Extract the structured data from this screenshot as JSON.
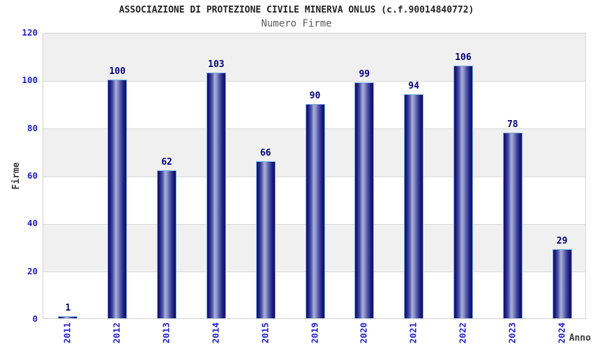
{
  "header": {
    "title": "ASSOCIAZIONE DI PROTEZIONE CIVILE MINERVA ONLUS (c.f.90014840772)",
    "subtitle": "Numero Firme"
  },
  "chart_data": {
    "type": "bar",
    "title": "ASSOCIAZIONE DI PROTEZIONE CIVILE MINERVA ONLUS (c.f.90014840772)",
    "subtitle": "Numero Firme",
    "categories": [
      "2011",
      "2012",
      "2013",
      "2014",
      "2015",
      "2019",
      "2020",
      "2021",
      "2022",
      "2023",
      "2024"
    ],
    "values": [
      1,
      100,
      62,
      103,
      66,
      90,
      99,
      94,
      106,
      78,
      29
    ],
    "xlabel": "Anno",
    "ylabel": "Firme",
    "ylim": [
      0,
      120
    ],
    "yticks": [
      0,
      20,
      40,
      60,
      80,
      100,
      120
    ],
    "grid": true,
    "legend": false,
    "band_fill": "alternating horizontal bands",
    "colors": {
      "bar_dark": "#0f0f6e",
      "bar_light": "#a9b1db",
      "bar_outline": "#79b2e0",
      "tick_label": "#1f1fcc",
      "value_label": "#00007e",
      "band_gray": "#f0f0f0",
      "band_white": "#ffffff",
      "gridline": "#d9d9d9",
      "title_text": "#242424",
      "subtitle_text": "#5a5a5a",
      "axis_title_text": "#3a3a3a"
    }
  }
}
